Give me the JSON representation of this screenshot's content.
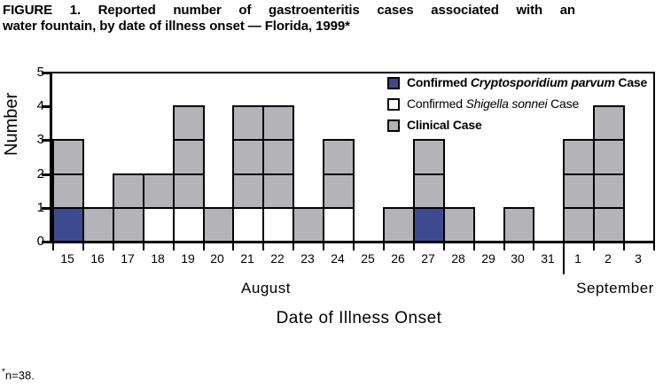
{
  "title": {
    "line1": "FIGURE 1. Reported number of gastroenteritis cases associated with an",
    "line2": "water fountain, by date of illness onset — Florida, 1999*"
  },
  "footnote": {
    "asterisk": "*",
    "text": "n=38."
  },
  "colors": {
    "confirmed_crypto": "#3e4a8f",
    "confirmed_shigella": "#ffffff",
    "clinical": "#b4b4b8",
    "line": "#000000",
    "background": "#ffffff"
  },
  "chart_data": {
    "type": "bar",
    "subtype": "stacked-unit-case-histogram",
    "title": "Reported number of gastroenteritis cases associated with an water fountain, by date of illness onset — Florida, 1999",
    "xlabel": "Date of Illness Onset",
    "ylabel": "Number",
    "ylim": [
      0,
      5
    ],
    "yticks": [
      0,
      1,
      2,
      3,
      4,
      5
    ],
    "grid": false,
    "legend_position": "top-right-inside",
    "legend": [
      {
        "key": "confirmed_crypto",
        "prefix": "Confirmed ",
        "italic": "Cryptosporidium parvum",
        "suffix": " Case",
        "bold": true,
        "color": "#3e4a8f"
      },
      {
        "key": "confirmed_shigella",
        "prefix": "Confirmed ",
        "italic": "Shigella sonnei",
        "suffix": " Case",
        "bold": false,
        "color": "#ffffff"
      },
      {
        "key": "clinical",
        "prefix": "Clinical Case",
        "italic": "",
        "suffix": "",
        "bold": true,
        "color": "#b4b4b8"
      }
    ],
    "x_groups": [
      {
        "label": "August",
        "dates": [
          15,
          16,
          17,
          18,
          19,
          20,
          21,
          22,
          23,
          24,
          25,
          26,
          27,
          28,
          29,
          30,
          31
        ]
      },
      {
        "label": "September",
        "dates": [
          1,
          2,
          3
        ]
      }
    ],
    "columns": [
      {
        "month": "August",
        "date": 15,
        "cells": [
          "confirmed_crypto",
          "clinical",
          "clinical"
        ]
      },
      {
        "month": "August",
        "date": 16,
        "cells": [
          "clinical"
        ]
      },
      {
        "month": "August",
        "date": 17,
        "cells": [
          "clinical",
          "clinical"
        ]
      },
      {
        "month": "August",
        "date": 18,
        "cells": [
          "confirmed_shigella",
          "clinical"
        ]
      },
      {
        "month": "August",
        "date": 19,
        "cells": [
          "confirmed_shigella",
          "clinical",
          "clinical",
          "clinical"
        ]
      },
      {
        "month": "August",
        "date": 20,
        "cells": [
          "clinical"
        ]
      },
      {
        "month": "August",
        "date": 21,
        "cells": [
          "confirmed_shigella",
          "clinical",
          "clinical",
          "clinical"
        ]
      },
      {
        "month": "August",
        "date": 22,
        "cells": [
          "confirmed_shigella",
          "clinical",
          "clinical",
          "clinical"
        ]
      },
      {
        "month": "August",
        "date": 23,
        "cells": [
          "clinical"
        ]
      },
      {
        "month": "August",
        "date": 24,
        "cells": [
          "confirmed_shigella",
          "clinical",
          "clinical"
        ]
      },
      {
        "month": "August",
        "date": 25,
        "cells": []
      },
      {
        "month": "August",
        "date": 26,
        "cells": [
          "clinical"
        ]
      },
      {
        "month": "August",
        "date": 27,
        "cells": [
          "confirmed_crypto",
          "clinical",
          "clinical"
        ]
      },
      {
        "month": "August",
        "date": 28,
        "cells": [
          "clinical"
        ]
      },
      {
        "month": "August",
        "date": 29,
        "cells": []
      },
      {
        "month": "August",
        "date": 30,
        "cells": [
          "clinical"
        ]
      },
      {
        "month": "August",
        "date": 31,
        "cells": []
      },
      {
        "month": "September",
        "date": 1,
        "cells": [
          "clinical",
          "clinical",
          "clinical"
        ]
      },
      {
        "month": "September",
        "date": 2,
        "cells": [
          "clinical",
          "clinical",
          "clinical",
          "clinical"
        ]
      },
      {
        "month": "September",
        "date": 3,
        "cells": []
      }
    ],
    "totals": {
      "confirmed_cryptosporidium_parvum": 2,
      "confirmed_shigella_sonnei": 5,
      "clinical": 31,
      "all_cases": 38
    }
  }
}
